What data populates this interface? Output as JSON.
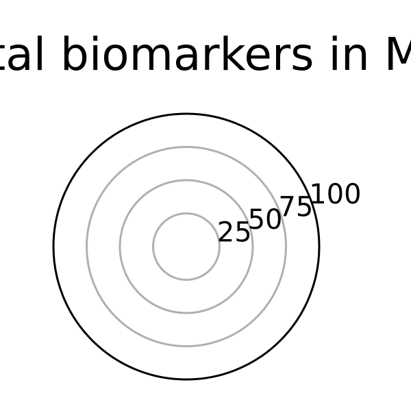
{
  "chart_data": {
    "type": "radar",
    "title": "tal biomarkers in M",
    "radial_ticks": [
      25,
      50,
      75,
      100
    ],
    "rlim": [
      0,
      100
    ],
    "grid": true,
    "series": [],
    "colors": {
      "grid": "#b0b0b0",
      "outer_frame": "#000000",
      "text": "#000000"
    }
  }
}
